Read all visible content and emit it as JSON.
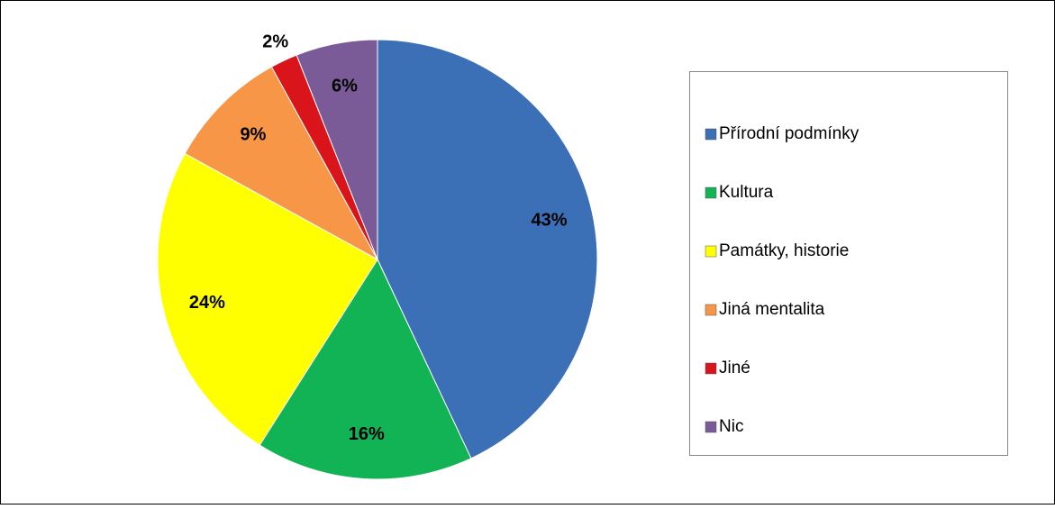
{
  "chart_data": {
    "type": "pie",
    "categories": [
      "Přírodní podmínky",
      "Kultura",
      "Památky, historie",
      "Jiná mentalita",
      "Jiné",
      "Nic"
    ],
    "values": [
      43,
      16,
      24,
      9,
      2,
      6
    ],
    "value_labels": [
      "43%",
      "16%",
      "24%",
      "9%",
      "2%",
      "6%"
    ],
    "colors": [
      "#3b6fb6",
      "#12b354",
      "#ffff00",
      "#f79646",
      "#d9141b",
      "#7a5b97"
    ],
    "legend": "right"
  }
}
